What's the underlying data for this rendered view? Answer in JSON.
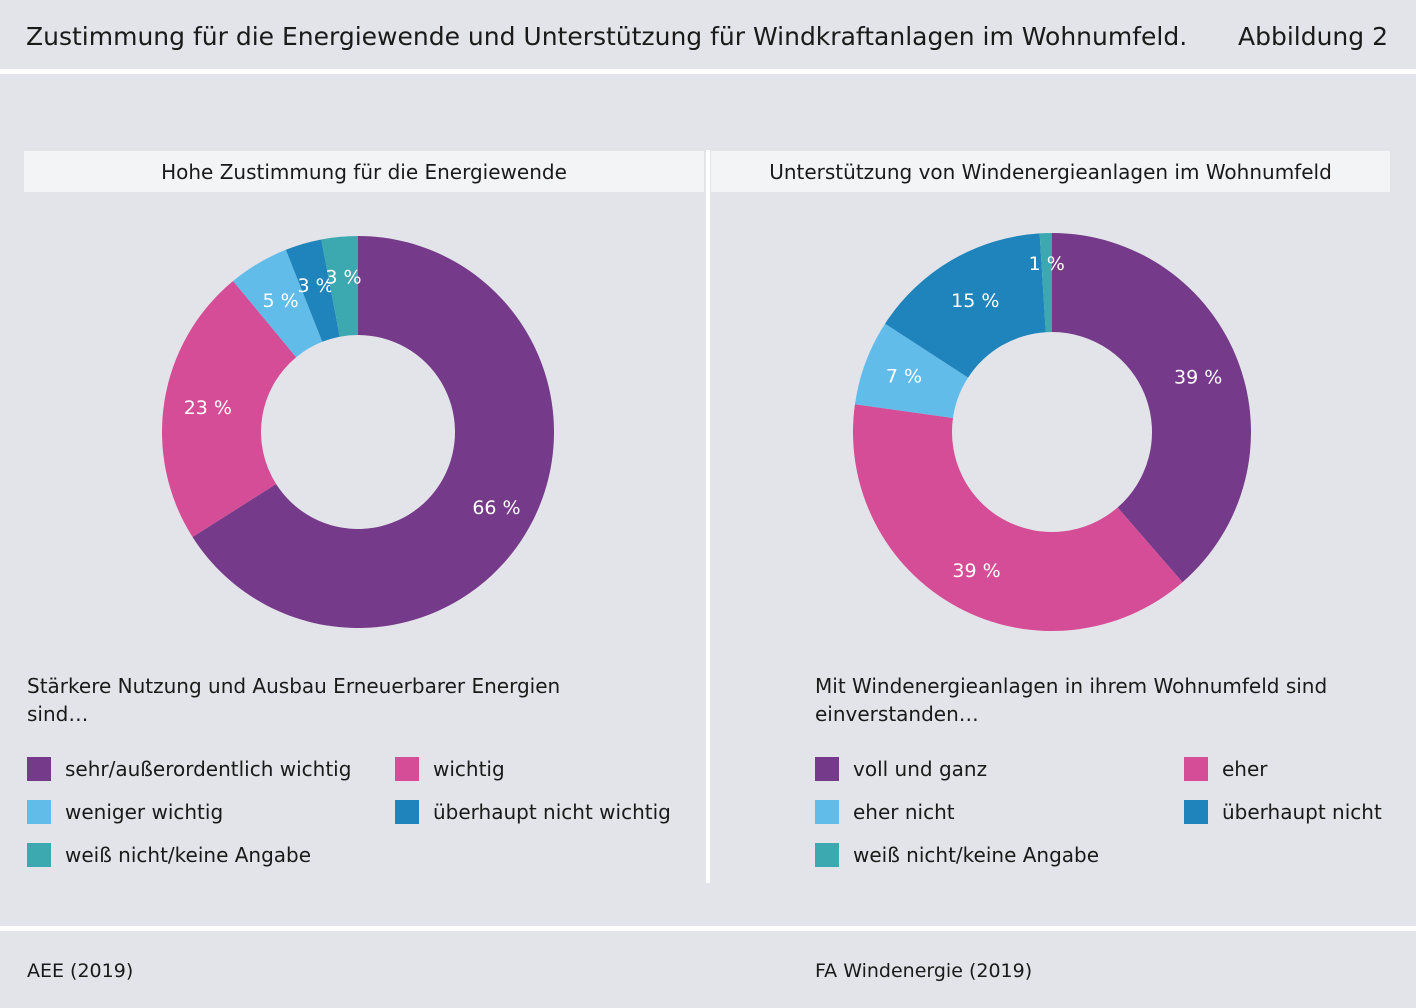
{
  "header": {
    "title": "Zustimmung für die Energiewende und Unterstützung für Windkraftanlagen im Wohnumfeld.",
    "figure_label": "Abbildung 2"
  },
  "colors": {
    "purple": "#763a8a",
    "pink": "#d54d96",
    "light_blue": "#62bce9",
    "blue": "#1f84bb",
    "teal": "#3ca9b1"
  },
  "left": {
    "heading": "Hohe Zustimmung für die Energiewende",
    "subtitle": "Stärkere Nutzung und Ausbau Erneuerbarer Energien sind…",
    "source": "AEE (2019)",
    "legend": [
      {
        "label": "sehr/außerordentlich wichtig",
        "color": "#763a8a"
      },
      {
        "label": "wichtig",
        "color": "#d54d96"
      },
      {
        "label": "weniger wichtig",
        "color": "#62bce9"
      },
      {
        "label": "überhaupt nicht wichtig",
        "color": "#1f84bb"
      },
      {
        "label": "weiß nicht/keine Angabe",
        "color": "#3ca9b1"
      }
    ]
  },
  "right": {
    "heading": "Unterstützung von Windenergieanlagen im Wohnumfeld",
    "subtitle": "Mit Windenergieanlagen in ihrem Wohnumfeld sind einverstanden…",
    "source": "FA Windenergie (2019)",
    "legend": [
      {
        "label": "voll und ganz",
        "color": "#763a8a"
      },
      {
        "label": "eher",
        "color": "#d54d96"
      },
      {
        "label": "eher nicht",
        "color": "#62bce9"
      },
      {
        "label": "überhaupt nicht",
        "color": "#1f84bb"
      },
      {
        "label": "weiß nicht/keine Angabe",
        "color": "#3ca9b1"
      }
    ]
  },
  "chart_data": [
    {
      "type": "pie",
      "title": "Hohe Zustimmung für die Energiewende",
      "categories": [
        "sehr/außerordentlich wichtig",
        "wichtig",
        "weniger wichtig",
        "überhaupt nicht wichtig",
        "weiß nicht/keine Angabe"
      ],
      "values": [
        66,
        23,
        5,
        3,
        3
      ],
      "labels": [
        "66 %",
        "23 %",
        "5 %",
        "3 %",
        "3 %"
      ],
      "colors": [
        "#763a8a",
        "#d54d96",
        "#62bce9",
        "#1f84bb",
        "#3ca9b1"
      ],
      "unit": "%"
    },
    {
      "type": "pie",
      "title": "Unterstützung von Windenergieanlagen im Wohnumfeld",
      "categories": [
        "voll und ganz",
        "eher",
        "eher nicht",
        "überhaupt nicht",
        "weiß nicht/keine Angabe"
      ],
      "values": [
        39,
        39,
        7,
        15,
        1
      ],
      "labels": [
        "39 %",
        "39 %",
        "7 %",
        "15 %",
        "1 %"
      ],
      "colors": [
        "#763a8a",
        "#d54d96",
        "#62bce9",
        "#1f84bb",
        "#3ca9b1"
      ],
      "unit": "%"
    }
  ]
}
